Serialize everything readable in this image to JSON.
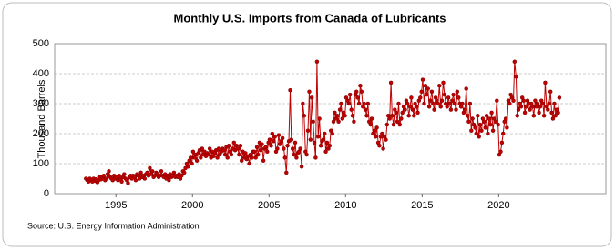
{
  "chart_data": {
    "type": "line",
    "title": "Monthly U.S. Imports from Canada of Lubricants",
    "y_label": "Thousand Barrels",
    "source": "Source: U.S. Energy Information Administration",
    "xlim": [
      1991,
      2027
    ],
    "xticks": [
      1995,
      2000,
      2005,
      2010,
      2015,
      2020
    ],
    "ylim": [
      0,
      500
    ],
    "yticks": [
      0,
      100,
      200,
      300,
      400,
      500
    ],
    "grid": true,
    "x": [
      1993.04,
      1993.13,
      1993.21,
      1993.29,
      1993.38,
      1993.46,
      1993.54,
      1993.63,
      1993.71,
      1993.79,
      1993.88,
      1993.96,
      1994.04,
      1994.13,
      1994.21,
      1994.29,
      1994.38,
      1994.46,
      1994.54,
      1994.63,
      1994.71,
      1994.79,
      1994.88,
      1994.96,
      1995.04,
      1995.13,
      1995.21,
      1995.29,
      1995.38,
      1995.46,
      1995.54,
      1995.63,
      1995.71,
      1995.79,
      1995.88,
      1995.96,
      1996.04,
      1996.13,
      1996.21,
      1996.29,
      1996.38,
      1996.46,
      1996.54,
      1996.63,
      1996.71,
      1996.79,
      1996.88,
      1996.96,
      1997.04,
      1997.13,
      1997.21,
      1997.29,
      1997.38,
      1997.46,
      1997.54,
      1997.63,
      1997.71,
      1997.79,
      1997.88,
      1997.96,
      1998.04,
      1998.13,
      1998.21,
      1998.29,
      1998.38,
      1998.46,
      1998.54,
      1998.63,
      1998.71,
      1998.79,
      1998.88,
      1998.96,
      1999.04,
      1999.13,
      1999.21,
      1999.29,
      1999.38,
      1999.46,
      1999.54,
      1999.63,
      1999.71,
      1999.79,
      1999.88,
      1999.96,
      2000.04,
      2000.13,
      2000.21,
      2000.29,
      2000.38,
      2000.46,
      2000.54,
      2000.63,
      2000.71,
      2000.79,
      2000.88,
      2000.96,
      2001.04,
      2001.13,
      2001.21,
      2001.29,
      2001.38,
      2001.46,
      2001.54,
      2001.63,
      2001.71,
      2001.79,
      2001.88,
      2001.96,
      2002.04,
      2002.13,
      2002.21,
      2002.29,
      2002.38,
      2002.46,
      2002.54,
      2002.63,
      2002.71,
      2002.79,
      2002.88,
      2002.96,
      2003.04,
      2003.13,
      2003.21,
      2003.29,
      2003.38,
      2003.46,
      2003.54,
      2003.63,
      2003.71,
      2003.79,
      2003.88,
      2003.96,
      2004.04,
      2004.13,
      2004.21,
      2004.29,
      2004.38,
      2004.46,
      2004.54,
      2004.63,
      2004.71,
      2004.79,
      2004.88,
      2004.96,
      2005.04,
      2005.13,
      2005.21,
      2005.29,
      2005.38,
      2005.46,
      2005.54,
      2005.63,
      2005.71,
      2005.79,
      2005.88,
      2005.96,
      2006.04,
      2006.13,
      2006.21,
      2006.29,
      2006.38,
      2006.46,
      2006.54,
      2006.63,
      2006.71,
      2006.79,
      2006.88,
      2006.96,
      2007.04,
      2007.13,
      2007.21,
      2007.29,
      2007.38,
      2007.46,
      2007.54,
      2007.63,
      2007.71,
      2007.79,
      2007.88,
      2007.96,
      2008.04,
      2008.13,
      2008.21,
      2008.29,
      2008.38,
      2008.46,
      2008.54,
      2008.63,
      2008.71,
      2008.79,
      2008.88,
      2008.96,
      2009.04,
      2009.13,
      2009.21,
      2009.29,
      2009.38,
      2009.46,
      2009.54,
      2009.63,
      2009.71,
      2009.79,
      2009.88,
      2009.96,
      2010.04,
      2010.13,
      2010.21,
      2010.29,
      2010.38,
      2010.46,
      2010.54,
      2010.63,
      2010.71,
      2010.79,
      2010.88,
      2010.96,
      2011.04,
      2011.13,
      2011.21,
      2011.29,
      2011.38,
      2011.46,
      2011.54,
      2011.63,
      2011.71,
      2011.79,
      2011.88,
      2011.96,
      2012.04,
      2012.13,
      2012.21,
      2012.29,
      2012.38,
      2012.46,
      2012.54,
      2012.63,
      2012.71,
      2012.79,
      2012.88,
      2012.96,
      2013.04,
      2013.13,
      2013.21,
      2013.29,
      2013.38,
      2013.46,
      2013.54,
      2013.63,
      2013.71,
      2013.79,
      2013.88,
      2013.96,
      2014.04,
      2014.13,
      2014.21,
      2014.29,
      2014.38,
      2014.46,
      2014.54,
      2014.63,
      2014.71,
      2014.79,
      2014.88,
      2014.96,
      2015.04,
      2015.13,
      2015.21,
      2015.29,
      2015.38,
      2015.46,
      2015.54,
      2015.63,
      2015.71,
      2015.79,
      2015.88,
      2015.96,
      2016.04,
      2016.13,
      2016.21,
      2016.29,
      2016.38,
      2016.46,
      2016.54,
      2016.63,
      2016.71,
      2016.79,
      2016.88,
      2016.96,
      2017.04,
      2017.13,
      2017.21,
      2017.29,
      2017.38,
      2017.46,
      2017.54,
      2017.63,
      2017.71,
      2017.79,
      2017.88,
      2017.96,
      2018.04,
      2018.13,
      2018.21,
      2018.29,
      2018.38,
      2018.46,
      2018.54,
      2018.63,
      2018.71,
      2018.79,
      2018.88,
      2018.96,
      2019.04,
      2019.13,
      2019.21,
      2019.29,
      2019.38,
      2019.46,
      2019.54,
      2019.63,
      2019.71,
      2019.79,
      2019.88,
      2019.96,
      2020.04,
      2020.13,
      2020.21,
      2020.29,
      2020.38,
      2020.46,
      2020.54,
      2020.63,
      2020.71,
      2020.79,
      2020.88,
      2020.96,
      2021.04,
      2021.13,
      2021.21,
      2021.29,
      2021.38,
      2021.46,
      2021.54,
      2021.63,
      2021.71,
      2021.79,
      2021.88,
      2021.96,
      2022.04,
      2022.13,
      2022.21,
      2022.29,
      2022.38,
      2022.46,
      2022.54,
      2022.63,
      2022.71,
      2022.79,
      2022.88,
      2022.96,
      2023.04,
      2023.13,
      2023.21,
      2023.29,
      2023.38,
      2023.46,
      2023.54,
      2023.63,
      2023.71,
      2023.79,
      2023.88,
      2023.96
    ],
    "series": [
      {
        "color": "#c00000",
        "values": [
          50,
          45,
          40,
          50,
          45,
          40,
          50,
          42,
          48,
          38,
          45,
          55,
          48,
          55,
          60,
          45,
          50,
          65,
          75,
          55,
          50,
          45,
          60,
          50,
          55,
          45,
          60,
          50,
          40,
          55,
          65,
          50,
          45,
          35,
          55,
          60,
          50,
          60,
          55,
          45,
          65,
          60,
          50,
          70,
          55,
          60,
          50,
          65,
          70,
          60,
          85,
          65,
          75,
          55,
          60,
          70,
          65,
          55,
          60,
          75,
          60,
          55,
          65,
          50,
          60,
          45,
          65,
          55,
          60,
          70,
          55,
          60,
          55,
          65,
          50,
          60,
          75,
          70,
          85,
          100,
          90,
          110,
          120,
          100,
          140,
          120,
          130,
          110,
          135,
          145,
          120,
          150,
          130,
          140,
          125,
          135,
          130,
          150,
          120,
          140,
          125,
          135,
          145,
          120,
          150,
          130,
          140,
          150,
          145,
          130,
          155,
          120,
          160,
          140,
          130,
          150,
          170,
          145,
          160,
          150,
          130,
          160,
          110,
          140,
          120,
          135,
          115,
          125,
          100,
          130,
          120,
          140,
          140,
          120,
          155,
          130,
          170,
          145,
          165,
          110,
          150,
          155,
          140,
          170,
          180,
          160,
          200,
          175,
          190,
          140,
          150,
          195,
          165,
          175,
          185,
          150,
          120,
          70,
          160,
          175,
          345,
          180,
          150,
          130,
          170,
          120,
          135,
          140,
          150,
          90,
          300,
          260,
          140,
          130,
          210,
          340,
          180,
          320,
          240,
          170,
          120,
          440,
          190,
          250,
          160,
          175,
          180,
          200,
          140,
          170,
          150,
          160,
          210,
          200,
          240,
          270,
          250,
          260,
          240,
          280,
          300,
          250,
          270,
          260,
          320,
          310,
          300,
          330,
          280,
          260,
          240,
          330,
          340,
          320,
          300,
          360,
          340,
          290,
          300,
          280,
          260,
          300,
          240,
          230,
          250,
          200,
          210,
          190,
          220,
          170,
          160,
          190,
          200,
          150,
          190,
          180,
          230,
          260,
          250,
          370,
          260,
          230,
          280,
          270,
          240,
          300,
          230,
          250,
          270,
          290,
          280,
          310,
          300,
          260,
          290,
          320,
          280,
          260,
          300,
          290,
          270,
          310,
          320,
          340,
          380,
          300,
          360,
          330,
          350,
          290,
          310,
          340,
          300,
          280,
          320,
          310,
          300,
          360,
          290,
          310,
          370,
          330,
          300,
          290,
          320,
          300,
          280,
          310,
          330,
          300,
          280,
          340,
          320,
          300,
          290,
          300,
          270,
          280,
          350,
          260,
          240,
          300,
          210,
          250,
          230,
          220,
          200,
          260,
          190,
          230,
          210,
          250,
          240,
          220,
          260,
          200,
          250,
          230,
          270,
          210,
          250,
          240,
          310,
          230,
          130,
          140,
          170,
          200,
          240,
          250,
          220,
          310,
          300,
          330,
          320,
          310,
          440,
          390,
          260,
          280,
          300,
          290,
          320,
          310,
          270,
          290,
          310,
          300,
          280,
          300,
          290,
          260,
          310,
          290,
          300,
          270,
          290,
          310,
          300,
          260,
          370,
          290,
          280,
          300,
          340,
          270,
          250,
          300,
          260,
          280,
          270,
          320
        ]
      }
    ]
  }
}
